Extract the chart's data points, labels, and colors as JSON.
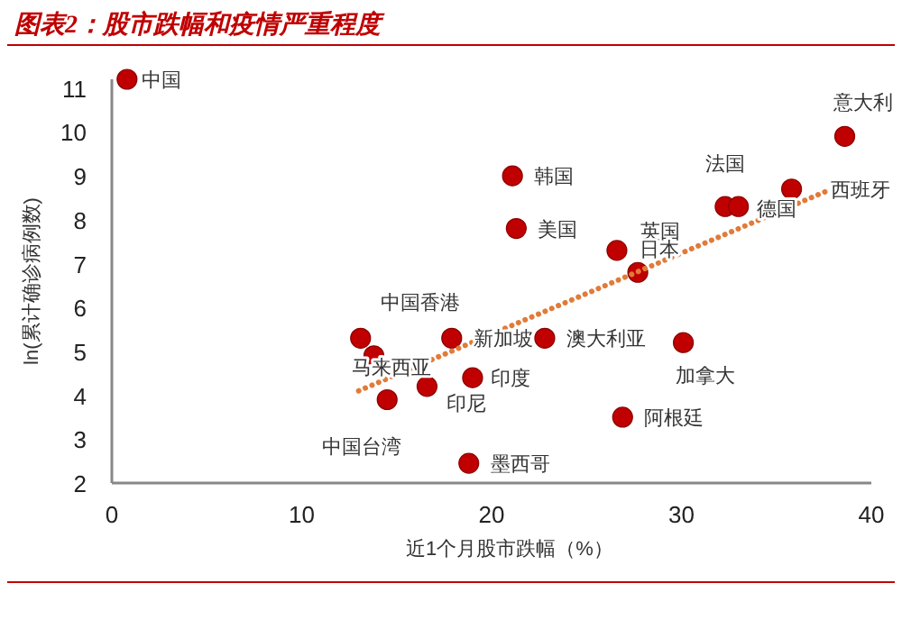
{
  "chart_data": {
    "type": "scatter",
    "title": "图表2：股市跌幅和疫情严重程度",
    "xlabel": "近1个月股市跌幅（%）",
    "ylabel": "ln(累计确诊病例数)",
    "xlim": [
      0,
      40
    ],
    "xticks": [
      0,
      10,
      20,
      30,
      40
    ],
    "ylim": [
      2,
      11.2
    ],
    "yticks": [
      2,
      3,
      4,
      5,
      6,
      7,
      8,
      9,
      10,
      11
    ],
    "grid": false,
    "series": [
      {
        "color": "#c00000",
        "marker": "circle",
        "x": [
          0.8,
          21.1,
          21.3,
          26.6,
          27.7,
          32.3,
          33.0,
          35.8,
          38.6,
          13.1,
          13.8,
          14.5,
          16.6,
          17.9,
          19.0,
          18.8,
          22.8,
          30.1,
          26.9
        ],
        "values": [
          11.2,
          9.0,
          7.8,
          7.3,
          6.8,
          8.3,
          8.3,
          8.7,
          9.9,
          5.3,
          4.9,
          3.9,
          4.2,
          5.3,
          4.4,
          2.45,
          5.3,
          5.2,
          3.5
        ]
      },
      {
        "type": "line",
        "color": "#e07b39",
        "line_style": "dotted",
        "x": [
          13.0,
          37.9
        ],
        "values": [
          4.1,
          8.7
        ]
      }
    ],
    "annotations": [
      {
        "text": "中国",
        "x": 0.8,
        "y": 11.2
      },
      {
        "text": "韩国",
        "x": 21.1,
        "y": 9.0
      },
      {
        "text": "美国",
        "x": 21.3,
        "y": 7.8
      },
      {
        "text": "英国",
        "x": 26.6,
        "y": 7.3
      },
      {
        "text": "日本",
        "x": 27.7,
        "y": 6.8
      },
      {
        "text": "法国",
        "x": 32.3,
        "y": 8.3
      },
      {
        "text": "德国",
        "x": 33.0,
        "y": 8.3
      },
      {
        "text": "西班牙",
        "x": 35.8,
        "y": 8.7
      },
      {
        "text": "意大利",
        "x": 38.6,
        "y": 9.9
      },
      {
        "text": "中国香港",
        "x": 13.1,
        "y": 5.3
      },
      {
        "text": "马来西亚",
        "x": 13.8,
        "y": 4.9
      },
      {
        "text": "中国台湾",
        "x": 14.5,
        "y": 3.9
      },
      {
        "text": "印尼",
        "x": 16.6,
        "y": 4.2
      },
      {
        "text": "新加坡",
        "x": 17.9,
        "y": 5.3
      },
      {
        "text": "印度",
        "x": 19.0,
        "y": 4.4
      },
      {
        "text": "墨西哥",
        "x": 18.8,
        "y": 2.45
      },
      {
        "text": "澳大利亚",
        "x": 22.8,
        "y": 5.3
      },
      {
        "text": "加拿大",
        "x": 30.1,
        "y": 5.2
      },
      {
        "text": "阿根廷",
        "x": 26.9,
        "y": 3.5
      }
    ]
  }
}
